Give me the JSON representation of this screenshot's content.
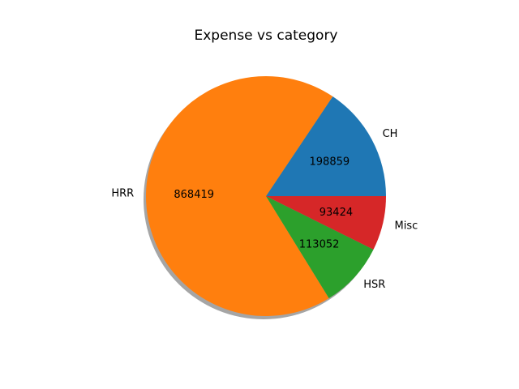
{
  "chart_data": {
    "type": "pie",
    "title": "Expense vs category",
    "categories": [
      "CH",
      "HRR",
      "HSR",
      "Misc"
    ],
    "values": [
      198859,
      868419,
      113052,
      93424
    ],
    "value_labels": [
      "198859",
      "868419",
      "113052",
      "93424"
    ],
    "colors": [
      "#1f77b4",
      "#ff7f0e",
      "#2ca02c",
      "#d62728"
    ],
    "shadow": true,
    "start_angle_deg": 0,
    "direction": "counterclockwise"
  }
}
